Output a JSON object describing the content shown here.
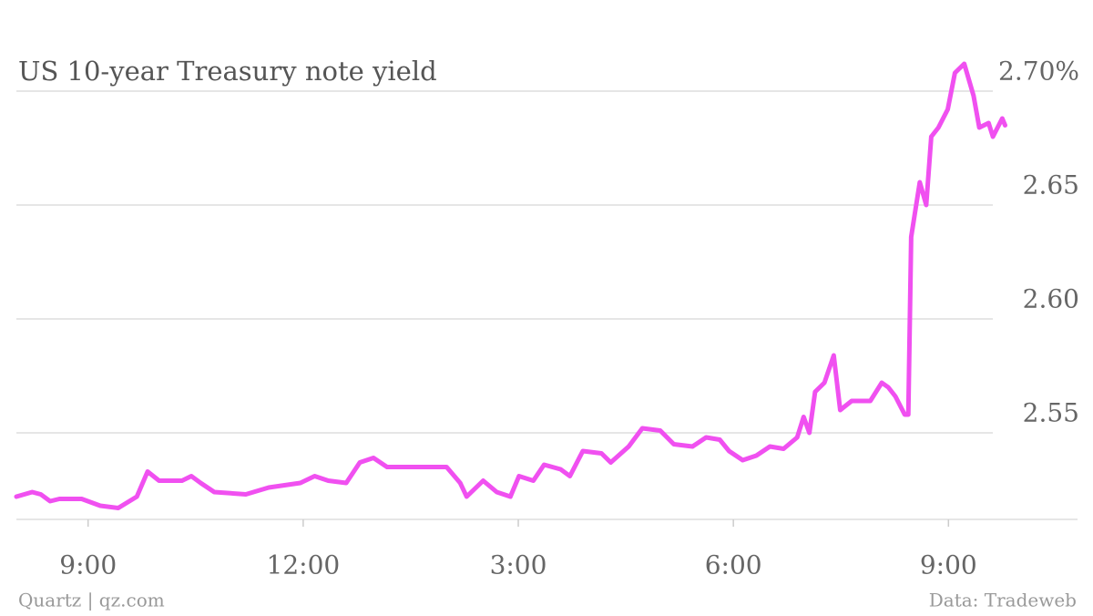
{
  "chart_data": {
    "type": "line",
    "title": "US 10-year Treasury note yield",
    "source": "Quartz | qz.com",
    "credit": "Data: Tradeweb",
    "x": [
      8.0,
      8.22,
      8.34,
      8.47,
      8.6,
      8.91,
      9.17,
      9.42,
      9.68,
      9.83,
      9.99,
      10.31,
      10.44,
      10.57,
      10.76,
      11.2,
      11.52,
      11.96,
      12.16,
      12.35,
      12.6,
      12.79,
      12.98,
      13.17,
      13.43,
      14.0,
      14.19,
      14.28,
      14.51,
      14.7,
      14.89,
      15.01,
      15.21,
      15.36,
      15.59,
      15.72,
      15.9,
      16.16,
      16.29,
      16.54,
      16.73,
      16.98,
      17.17,
      17.43,
      17.62,
      17.81,
      17.94,
      18.13,
      18.32,
      18.51,
      18.7,
      18.89,
      18.98,
      19.06,
      19.14,
      19.27,
      19.4,
      19.49,
      19.65,
      19.91,
      20.07,
      20.16,
      20.26,
      20.39,
      20.44,
      20.48,
      20.6,
      20.69,
      20.76,
      20.86,
      20.99,
      21.09,
      21.22,
      21.35,
      21.43,
      21.56,
      21.62,
      21.75,
      21.79
    ],
    "series": [
      {
        "name": "US 10-year Treasury note yield",
        "color": "#f050f0",
        "values": [
          2.522,
          2.524,
          2.523,
          2.52,
          2.521,
          2.521,
          2.518,
          2.517,
          2.522,
          2.533,
          2.529,
          2.529,
          2.531,
          2.528,
          2.524,
          2.523,
          2.526,
          2.528,
          2.531,
          2.529,
          2.528,
          2.537,
          2.539,
          2.535,
          2.535,
          2.535,
          2.528,
          2.522,
          2.529,
          2.524,
          2.522,
          2.531,
          2.529,
          2.536,
          2.534,
          2.531,
          2.542,
          2.541,
          2.537,
          2.544,
          2.552,
          2.551,
          2.545,
          2.544,
          2.548,
          2.547,
          2.542,
          2.538,
          2.54,
          2.544,
          2.543,
          2.548,
          2.557,
          2.55,
          2.568,
          2.572,
          2.584,
          2.56,
          2.564,
          2.564,
          2.572,
          2.57,
          2.566,
          2.558,
          2.558,
          2.636,
          2.66,
          2.65,
          2.68,
          2.684,
          2.692,
          2.708,
          2.712,
          2.698,
          2.684,
          2.686,
          2.68,
          2.688,
          2.685
        ]
      }
    ],
    "xlim": [
      8,
      22.8
    ],
    "xticks": [
      {
        "value": 9,
        "label": "9:00"
      },
      {
        "value": 12,
        "label": "12:00"
      },
      {
        "value": 15,
        "label": "3:00"
      },
      {
        "value": 18,
        "label": "6:00"
      },
      {
        "value": 21,
        "label": "9:00"
      }
    ],
    "ylim": [
      2.512,
      2.72
    ],
    "yticks": [
      2.55,
      {
        "value": 2.6,
        "label": "2.60"
      },
      2.65,
      {
        "value": 2.7,
        "label": "2.70%"
      }
    ],
    "grid": true
  }
}
